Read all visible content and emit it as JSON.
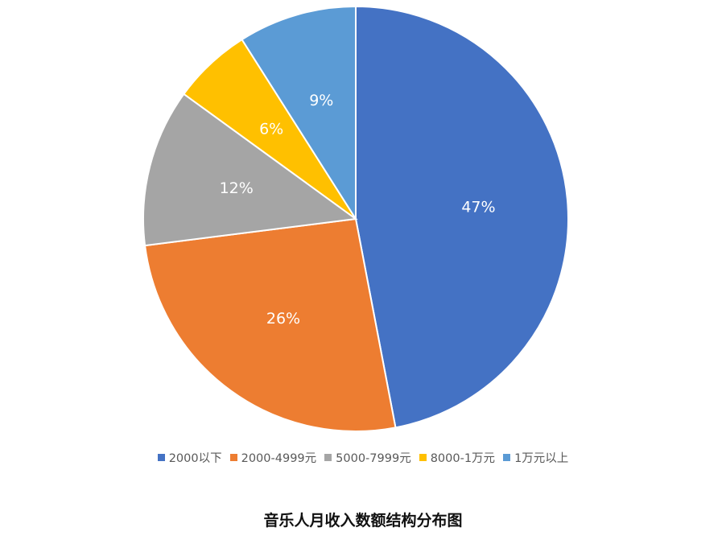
{
  "chart_data": {
    "type": "pie",
    "title": "音乐人月收入数额结构分布图",
    "legend_position": "bottom",
    "categories": [
      "2000以下",
      "2000-4999元",
      "5000-7999元",
      "8000-1万元",
      "1万元以上"
    ],
    "values": [
      47,
      26,
      12,
      6,
      9
    ],
    "labels": [
      "47%",
      "26%",
      "12%",
      "6%",
      "9%"
    ],
    "colors": [
      "#4472C4",
      "#ED7D31",
      "#A5A5A5",
      "#FFC000",
      "#5B9BD5"
    ]
  }
}
